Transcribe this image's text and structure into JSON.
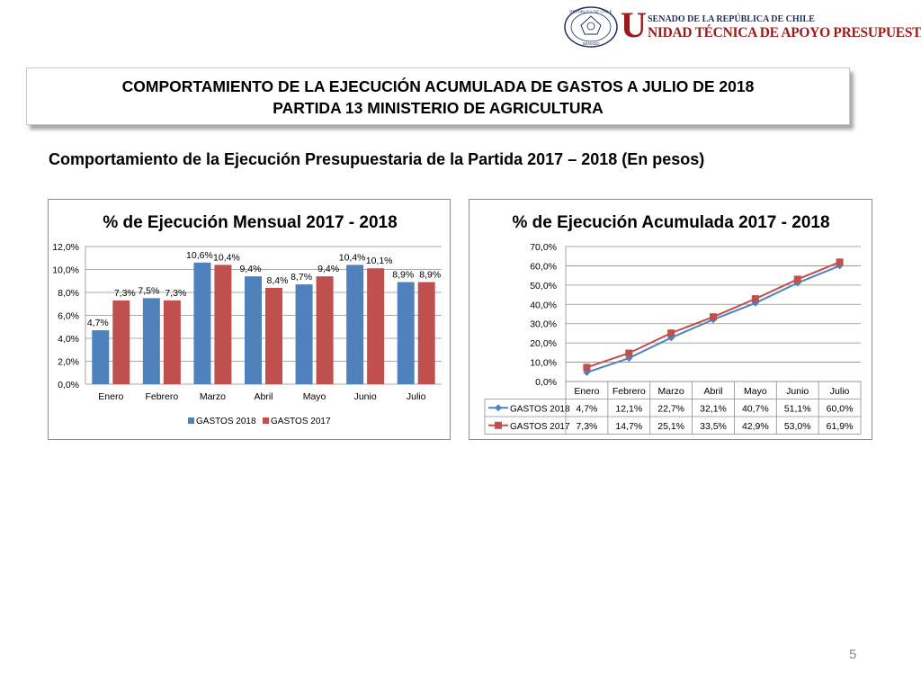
{
  "header": {
    "logo_line1": "SENADO DE LA REPÚBLICA DE CHILE",
    "logo_initial": "U",
    "logo_line2": "NIDAD TÉCNICA DE APOYO PRESUPUESTARIO",
    "seal_top": "REPÚBLICA DE CHILE",
    "seal_bottom": "SENADO"
  },
  "title": {
    "line1": "COMPORTAMIENTO DE LA EJECUCIÓN ACUMULADA DE GASTOS A JULIO DE 2018",
    "line2": "PARTIDA 13 MINISTERIO DE AGRICULTURA"
  },
  "subtitle": "Comportamiento de la Ejecución Presupuestaria de la Partida 2017 – 2018 (En pesos)",
  "page_number": "5",
  "colors": {
    "gastos_2018": "#4f81bd",
    "gastos_2017": "#c0504d",
    "logo_red": "#9b1b1b",
    "logo_navy": "#1f2f5f"
  },
  "chart_data": [
    {
      "type": "bar",
      "title": "% de Ejecución Mensual 2017 - 2018",
      "categories": [
        "Enero",
        "Febrero",
        "Marzo",
        "Abril",
        "Mayo",
        "Junio",
        "Julio"
      ],
      "series": [
        {
          "name": "GASTOS 2018",
          "values": [
            4.7,
            7.5,
            10.6,
            9.4,
            8.7,
            10.4,
            8.9
          ],
          "labels": [
            "4,7%",
            "7,5%",
            "10,6%",
            "9,4%",
            "8,7%",
            "10,4%",
            "8,9%"
          ]
        },
        {
          "name": "GASTOS 2017",
          "values": [
            7.3,
            7.3,
            10.4,
            8.4,
            9.4,
            10.1,
            8.9
          ],
          "labels": [
            "7,3%",
            "7,3%",
            "10,4%",
            "8,4%",
            "9,4%",
            "10,1%",
            "8,9%"
          ]
        }
      ],
      "yticks": [
        "0,0%",
        "2,0%",
        "4,0%",
        "6,0%",
        "8,0%",
        "10,0%",
        "12,0%"
      ],
      "ylim": [
        0,
        12
      ],
      "legend_position": "bottom",
      "grid": true
    },
    {
      "type": "line",
      "title": "% de Ejecución Acumulada 2017 - 2018",
      "categories": [
        "Enero",
        "Febrero",
        "Marzo",
        "Abril",
        "Mayo",
        "Junio",
        "Julio"
      ],
      "series": [
        {
          "name": "GASTOS 2018",
          "values": [
            4.7,
            12.1,
            22.7,
            32.1,
            40.7,
            51.1,
            60.0
          ],
          "labels": [
            "4,7%",
            "12,1%",
            "22,7%",
            "32,1%",
            "40,7%",
            "51,1%",
            "60,0%"
          ]
        },
        {
          "name": "GASTOS 2017",
          "values": [
            7.3,
            14.7,
            25.1,
            33.5,
            42.9,
            53.0,
            61.9
          ],
          "labels": [
            "7,3%",
            "14,7%",
            "25,1%",
            "33,5%",
            "42,9%",
            "53,0%",
            "61,9%"
          ]
        }
      ],
      "yticks": [
        "0,0%",
        "10,0%",
        "20,0%",
        "30,0%",
        "40,0%",
        "50,0%",
        "60,0%",
        "70,0%"
      ],
      "ylim": [
        0,
        70
      ],
      "legend_position": "data-table",
      "grid": true
    }
  ]
}
